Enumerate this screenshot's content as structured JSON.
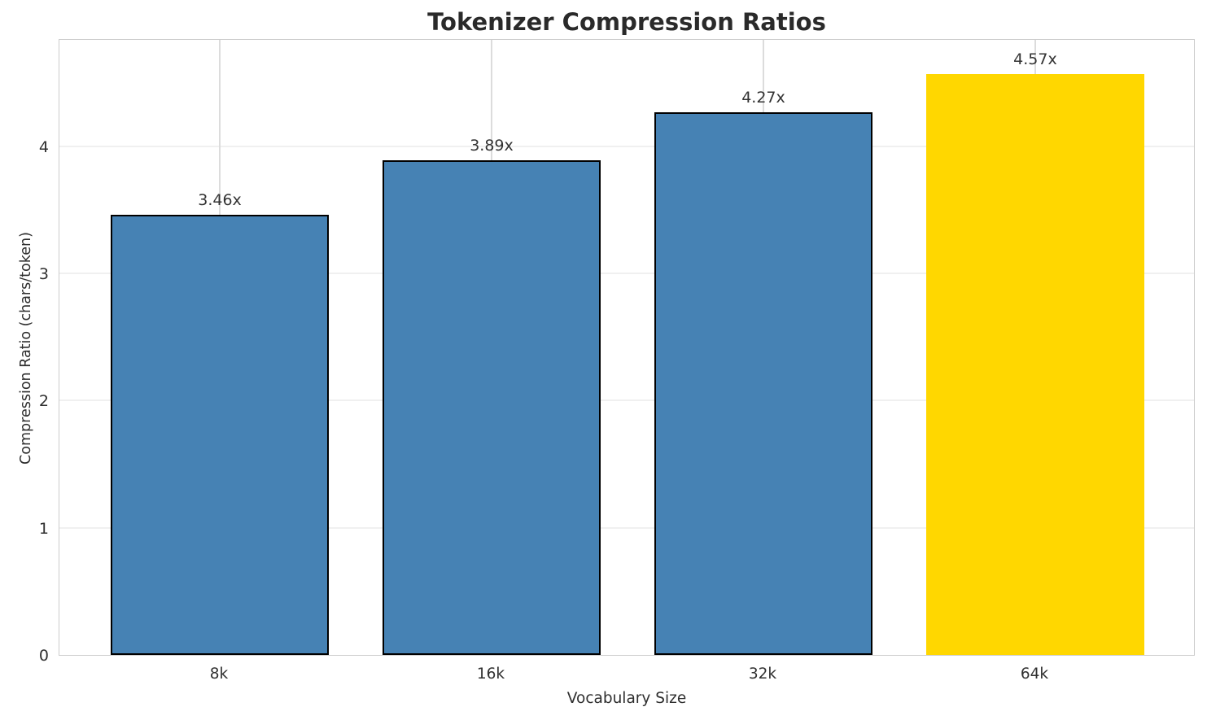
{
  "chart_data": {
    "type": "bar",
    "title": "Tokenizer Compression Ratios",
    "xlabel": "Vocabulary Size",
    "ylabel": "Compression Ratio (chars/token)",
    "categories": [
      "8k",
      "16k",
      "32k",
      "64k"
    ],
    "values": [
      3.46,
      3.89,
      4.27,
      4.57
    ],
    "bar_labels": [
      "3.46x",
      "3.89x",
      "4.27x",
      "4.57x"
    ],
    "yticks": [
      0,
      1,
      2,
      3,
      4
    ],
    "ylim": [
      0,
      4.85
    ],
    "xlim": [
      -0.59,
      3.59
    ],
    "bar_width_units": 0.8,
    "grid": true,
    "legend": "none",
    "bar_colors": [
      "#4682B4",
      "#4682B4",
      "#4682B4",
      "#FFD700"
    ],
    "bar_edges": [
      "#000000",
      "#000000",
      "#000000",
      "none"
    ],
    "colors": {
      "bar_default": "#4682B4",
      "bar_highlight": "#FFD700",
      "bar_edge": "#000000",
      "grid_horizontal": "#f0f0f0",
      "grid_vertical": "#dcdcdc",
      "spine": "#cccccc",
      "title_text": "#2a2a2a",
      "tick_text": "#303030"
    }
  }
}
